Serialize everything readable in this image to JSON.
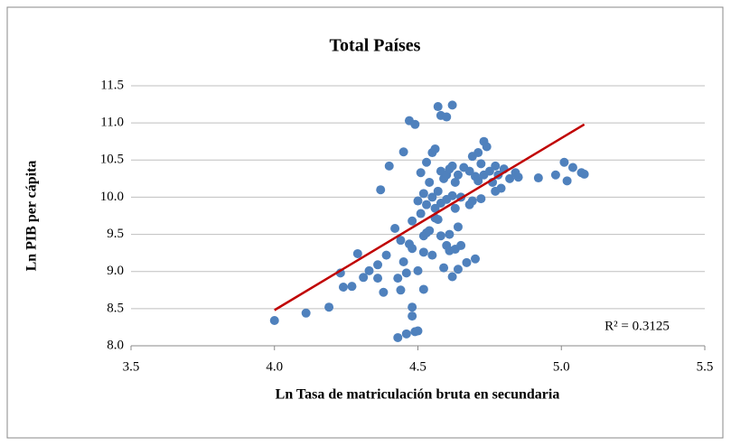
{
  "chart_data": {
    "type": "scatter",
    "title": "Total Países",
    "x_label": "Ln Tasa de matriculación bruta en secundaria",
    "y_label": "Ln PIB per cápita",
    "annotation": "R² = 0.3125",
    "color": "#4f81bd",
    "grid": true,
    "xlim": [
      3.5,
      5.5
    ],
    "xticks": [
      3.5,
      {
        "value": 4.0,
        "label": "4.0"
      },
      4.5,
      {
        "value": 5.0,
        "label": "5.0"
      },
      5.5
    ],
    "ylim": [
      8.0,
      11.5
    ],
    "yticks": [
      {
        "value": 8.0,
        "label": "8.0"
      },
      8.5,
      {
        "value": 9.0,
        "label": "9.0"
      },
      9.5,
      {
        "value": 10.0,
        "label": "10.0"
      },
      10.5,
      {
        "value": 11.0,
        "label": "11.0"
      },
      11.5
    ],
    "trendline": {
      "x": [
        4.0,
        5.08
      ],
      "y": [
        8.48,
        10.98
      ],
      "color": "#c00000"
    },
    "x": [
      4.0,
      4.11,
      4.19,
      4.23,
      4.24,
      4.27,
      4.29,
      4.31,
      4.33,
      4.36,
      4.36,
      4.37,
      4.38,
      4.39,
      4.4,
      4.42,
      4.43,
      4.44,
      4.43,
      4.44,
      4.45,
      4.45,
      4.46,
      4.46,
      4.47,
      4.47,
      4.48,
      4.48,
      4.48,
      4.48,
      4.49,
      4.49,
      4.5,
      4.5,
      4.5,
      4.51,
      4.51,
      4.52,
      4.52,
      4.52,
      4.52,
      4.53,
      4.53,
      4.53,
      4.54,
      4.54,
      4.55,
      4.55,
      4.55,
      4.56,
      4.56,
      4.56,
      4.57,
      4.57,
      4.57,
      4.58,
      4.58,
      4.58,
      4.58,
      4.59,
      4.59,
      4.6,
      4.6,
      4.6,
      4.6,
      4.61,
      4.61,
      4.61,
      4.62,
      4.62,
      4.62,
      4.62,
      4.63,
      4.63,
      4.63,
      4.64,
      4.64,
      4.64,
      4.65,
      4.65,
      4.66,
      4.67,
      4.68,
      4.68,
      4.69,
      4.69,
      4.7,
      4.7,
      4.71,
      4.71,
      4.72,
      4.72,
      4.73,
      4.73,
      4.74,
      4.75,
      4.76,
      4.77,
      4.77,
      4.78,
      4.79,
      4.8,
      4.82,
      4.84,
      4.85,
      4.92,
      4.98,
      5.01,
      5.02,
      5.04,
      5.07,
      5.08
    ],
    "values": [
      8.34,
      8.44,
      8.52,
      8.98,
      8.79,
      8.8,
      9.24,
      8.92,
      9.01,
      9.09,
      8.91,
      10.1,
      8.72,
      9.22,
      10.42,
      9.58,
      8.91,
      9.42,
      8.11,
      8.75,
      10.61,
      9.13,
      8.16,
      8.98,
      9.37,
      11.03,
      9.31,
      9.68,
      8.52,
      8.4,
      10.98,
      8.19,
      8.2,
      9.95,
      9.01,
      10.33,
      9.78,
      9.48,
      9.26,
      8.76,
      10.05,
      10.47,
      9.9,
      9.52,
      10.2,
      9.55,
      10.6,
      10.0,
      9.22,
      10.65,
      9.85,
      9.72,
      11.22,
      10.08,
      9.7,
      11.1,
      10.35,
      9.92,
      9.48,
      10.25,
      9.05,
      11.08,
      10.3,
      9.35,
      9.97,
      10.38,
      9.5,
      9.28,
      11.24,
      10.42,
      10.02,
      8.93,
      10.2,
      9.85,
      9.3,
      10.3,
      9.6,
      9.03,
      10.0,
      9.35,
      10.4,
      9.12,
      10.35,
      9.9,
      10.55,
      9.95,
      10.28,
      9.17,
      10.6,
      10.22,
      10.45,
      9.98,
      10.75,
      10.3,
      10.68,
      10.35,
      10.2,
      10.42,
      10.08,
      10.3,
      10.12,
      10.38,
      10.25,
      10.33,
      10.27,
      10.26,
      10.3,
      10.47,
      10.22,
      10.4,
      10.33,
      10.31
    ]
  }
}
